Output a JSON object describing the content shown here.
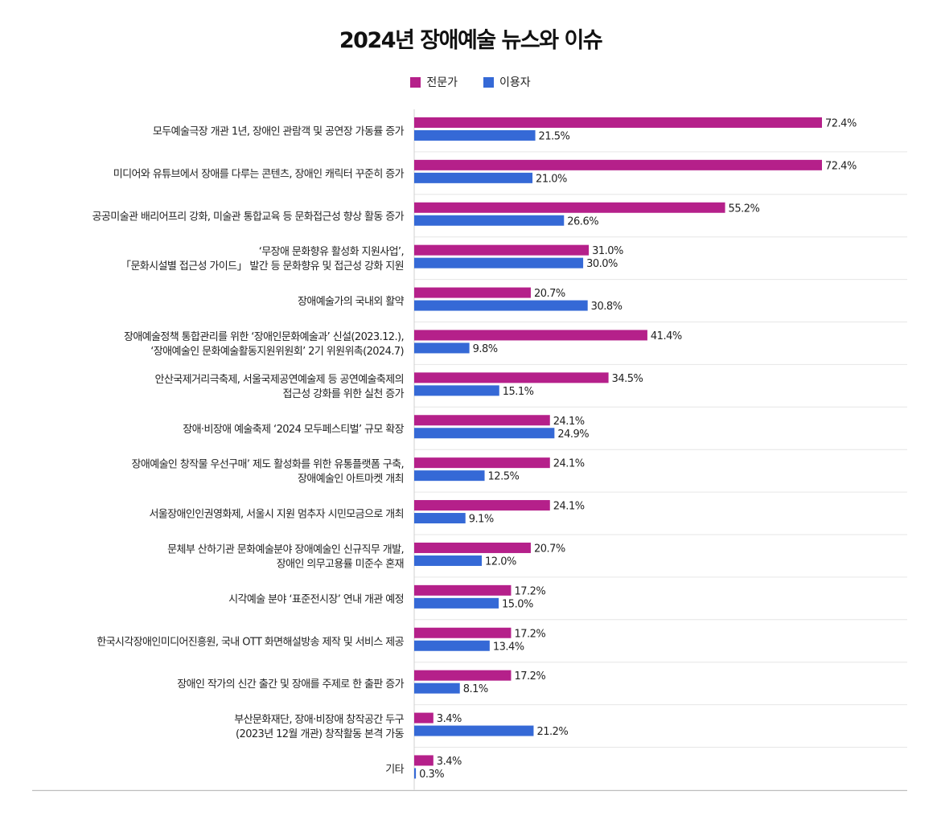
{
  "chart_data": {
    "type": "bar",
    "orientation": "horizontal",
    "title": "2024년 장애예술 뉴스와 이슈",
    "legend_position": "top-center",
    "grid": false,
    "xlim": [
      0,
      80
    ],
    "series": [
      {
        "name": "전문가",
        "color": "#b5208a",
        "values": [
          72.4,
          72.4,
          55.2,
          31.0,
          20.7,
          41.4,
          34.5,
          24.1,
          24.1,
          24.1,
          20.7,
          17.2,
          17.2,
          17.2,
          3.4,
          3.4
        ]
      },
      {
        "name": "이용자",
        "color": "#3569d6",
        "values": [
          21.5,
          21.0,
          26.6,
          30.0,
          30.8,
          9.8,
          15.1,
          24.9,
          12.5,
          9.1,
          12.0,
          15.0,
          13.4,
          8.1,
          21.2,
          0.3
        ]
      }
    ],
    "categories": [
      [
        "모두예술극장 개관 1년, 장애인 관람객 및 공연장 가동률 증가"
      ],
      [
        "미디어와 유튜브에서 장애를 다루는 콘텐츠, 장애인 캐릭터 꾸준히 증가"
      ],
      [
        "공공미술관 배리어프리 강화, 미술관 통합교육 등 문화접근성 향상 활동 증가"
      ],
      [
        "‘무장애 문화향유 활성화 지원사업’,",
        "「문화시설별 접근성 가이드」 발간 등 문화향유 및 접근성 강화 지원"
      ],
      [
        "장애예술가의 국내외 활약"
      ],
      [
        "장애예술정책 통합관리를 위한 ‘장애인문화예술과’ 신설(2023.12.),",
        "‘장애예술인 문화예술활동지원위원회’ 2기 위원위촉(2024.7)"
      ],
      [
        "안산국제거리극축제, 서울국제공연예술제 등 공연예술축제의",
        "접근성 강화를 위한 실천 증가"
      ],
      [
        "장애·비장애 예술축제 ‘2024 모두페스티벌’ 규모 확장"
      ],
      [
        "장애예술인 창작물 우선구매’ 제도 활성화를 위한 유통플랫폼 구축,",
        "장애예술인 아트마켓 개최"
      ],
      [
        "서울장애인인권영화제, 서울시 지원 멈추자 시민모금으로 개최"
      ],
      [
        "문체부 산하기관 문화예술분야 장애예술인 신규직무 개발,",
        "장애인 의무고용률 미준수 혼재"
      ],
      [
        "시각예술 분야 ‘표준전시장’ 연내 개관 예정"
      ],
      [
        "한국시각장애인미디어진흥원, 국내 OTT 화면해설방송 제작 및 서비스 제공"
      ],
      [
        "장애인 작가의 신간 출간 및 장애를 주제로 한 출판 증가"
      ],
      [
        "부산문화재단, 장애·비장애 창작공간 두구",
        "(2023년 12월 개관) 창작활동 본격 가동"
      ],
      [
        "기타"
      ]
    ],
    "value_suffix": "%"
  }
}
